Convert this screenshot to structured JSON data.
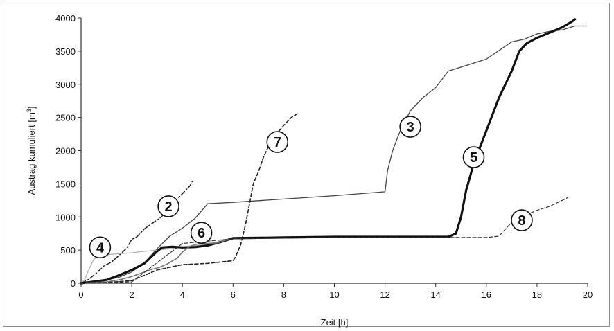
{
  "chart_data": {
    "type": "line",
    "xlabel": "Zeit [h]",
    "ylabel": "Austrag kumuliert [m",
    "ylabel_sup": "3",
    "ylabel_end": "]",
    "xlim": [
      0,
      20
    ],
    "ylim": [
      0,
      4000
    ],
    "xticks": [
      0,
      2,
      4,
      6,
      8,
      10,
      12,
      14,
      16,
      18,
      20
    ],
    "yticks": [
      0,
      500,
      1000,
      1500,
      2000,
      2500,
      3000,
      3500,
      4000
    ],
    "grid": false,
    "legend": "none",
    "series": [
      {
        "id": "2",
        "style": "dashdot",
        "color": "#222222",
        "width": 1.5,
        "x": [
          0,
          0.3,
          0.6,
          0.9,
          1.2,
          1.5,
          1.8,
          2.0,
          2.2,
          2.5,
          2.8,
          3.1,
          3.4,
          3.7,
          4.0,
          4.3,
          4.4
        ],
        "y": [
          0,
          60,
          150,
          260,
          320,
          420,
          530,
          660,
          700,
          820,
          900,
          980,
          1080,
          1230,
          1350,
          1470,
          1540
        ]
      },
      {
        "id": "3",
        "style": "solid",
        "color": "#444444",
        "width": 1.3,
        "x": [
          0,
          0.8,
          1.5,
          2.0,
          2.5,
          3.0,
          3.5,
          4.0,
          4.5,
          5.0,
          6.0,
          8.0,
          10.0,
          12.0,
          12.1,
          12.3,
          12.6,
          13.0,
          13.5,
          14.0,
          14.5,
          15.0,
          16.0,
          17.0,
          17.5,
          18.0,
          18.5,
          19.0,
          19.5,
          19.9
        ],
        "y": [
          0,
          30,
          90,
          170,
          310,
          520,
          710,
          830,
          980,
          1200,
          1220,
          1270,
          1320,
          1380,
          1700,
          2000,
          2300,
          2600,
          2800,
          2950,
          3200,
          3260,
          3380,
          3640,
          3680,
          3760,
          3800,
          3820,
          3880,
          3880
        ]
      },
      {
        "id": "4",
        "style": "solid",
        "color": "#b3b3b3",
        "width": 1.3,
        "x": [
          0,
          0.15,
          0.3,
          0.5,
          0.7,
          1.0,
          1.5,
          2.0,
          2.5,
          3.0,
          3.5,
          4.0,
          4.5,
          5.0
        ],
        "y": [
          0,
          60,
          200,
          360,
          410,
          430,
          445,
          460,
          480,
          500,
          520,
          545,
          565,
          590
        ]
      },
      {
        "id": "5",
        "style": "solid",
        "color": "#111111",
        "width": 3.2,
        "x": [
          0,
          1.0,
          1.5,
          2.0,
          2.5,
          3.0,
          3.2,
          3.6,
          4.0,
          4.5,
          5.0,
          5.5,
          6.0,
          7.0,
          8.0,
          10.0,
          12.0,
          13.0,
          14.0,
          14.5,
          14.8,
          15.0,
          15.2,
          15.5,
          15.7,
          16.0,
          16.5,
          17.0,
          17.3,
          17.6,
          18.0,
          18.5,
          19.0,
          19.4,
          19.5
        ],
        "y": [
          0,
          50,
          120,
          200,
          300,
          480,
          540,
          550,
          540,
          545,
          570,
          620,
          680,
          685,
          690,
          700,
          700,
          700,
          700,
          700,
          750,
          1000,
          1400,
          1800,
          2000,
          2300,
          2800,
          3200,
          3500,
          3620,
          3700,
          3780,
          3860,
          3950,
          3980
        ]
      },
      {
        "id": "6",
        "style": "solid",
        "color": "#777777",
        "width": 1.6,
        "x": [
          0,
          1.0,
          1.5,
          2.0,
          2.5,
          2.8,
          3.1,
          3.4,
          3.8,
          4.0,
          4.3,
          4.6,
          5.0,
          5.4,
          5.8
        ],
        "y": [
          0,
          20,
          50,
          100,
          170,
          210,
          240,
          290,
          380,
          470,
          560,
          590,
          600,
          610,
          660
        ]
      },
      {
        "id": "7",
        "style": "dashed",
        "color": "#222222",
        "width": 1.6,
        "x": [
          0,
          1.0,
          2.0,
          2.5,
          3.0,
          3.5,
          4.0,
          5.0,
          6.0,
          6.1,
          6.3,
          6.5,
          6.7,
          6.8,
          7.0,
          7.2,
          7.5,
          8.0,
          8.3,
          8.6
        ],
        "y": [
          0,
          10,
          40,
          120,
          200,
          240,
          280,
          300,
          340,
          400,
          580,
          900,
          1300,
          1500,
          1680,
          1900,
          2150,
          2380,
          2500,
          2570
        ]
      },
      {
        "id": "8",
        "style": "dashed",
        "color": "#333333",
        "width": 1.2,
        "x": [
          0,
          2.0,
          4.0,
          6.0,
          8.0,
          10.0,
          12.0,
          14.0,
          16.0,
          16.5,
          17.0,
          17.5,
          18.0,
          18.5,
          19.0,
          19.2
        ],
        "y": [
          0,
          20,
          600,
          670,
          680,
          690,
          690,
          690,
          690,
          710,
          920,
          1020,
          1100,
          1160,
          1250,
          1290
        ]
      }
    ],
    "annotations": [
      {
        "label": "2",
        "x": 3.45,
        "y": 1160
      },
      {
        "label": "3",
        "x": 13.0,
        "y": 2360
      },
      {
        "label": "4",
        "x": 0.75,
        "y": 540
      },
      {
        "label": "5",
        "x": 15.5,
        "y": 1900
      },
      {
        "label": "6",
        "x": 4.75,
        "y": 760
      },
      {
        "label": "7",
        "x": 7.75,
        "y": 2130
      },
      {
        "label": "8",
        "x": 17.4,
        "y": 950
      }
    ]
  }
}
